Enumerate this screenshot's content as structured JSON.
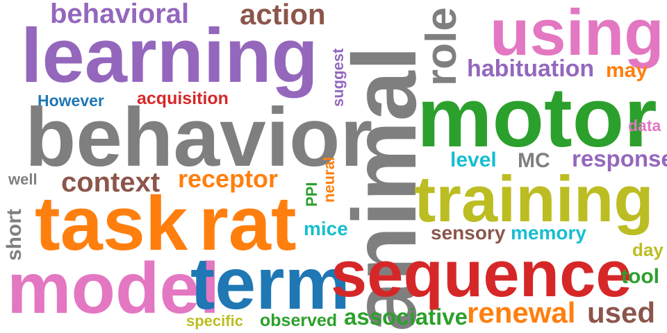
{
  "words": [
    {
      "text": "behavioral",
      "color": "#9467bd"
    },
    {
      "text": "action",
      "color": "#8c564b"
    },
    {
      "text": "learning",
      "color": "#9467bd"
    },
    {
      "text": "animal",
      "color": "#7f7f7f"
    },
    {
      "text": "role",
      "color": "#7f7f7f"
    },
    {
      "text": "using",
      "color": "#e377c2"
    },
    {
      "text": "habituation",
      "color": "#9467bd"
    },
    {
      "text": "may",
      "color": "#ff7f0e"
    },
    {
      "text": "suggest",
      "color": "#9467bd"
    },
    {
      "text": "However",
      "color": "#1f77b4"
    },
    {
      "text": "acquisition",
      "color": "#d62728"
    },
    {
      "text": "motor",
      "color": "#2ca02c"
    },
    {
      "text": "behavior",
      "color": "#7f7f7f"
    },
    {
      "text": "data",
      "color": "#e377c2"
    },
    {
      "text": "level",
      "color": "#17becf"
    },
    {
      "text": "MC",
      "color": "#7f7f7f"
    },
    {
      "text": "response",
      "color": "#9467bd"
    },
    {
      "text": "well",
      "color": "#7f7f7f"
    },
    {
      "text": "context",
      "color": "#8c564b"
    },
    {
      "text": "receptor",
      "color": "#ff7f0e"
    },
    {
      "text": "neural",
      "color": "#ff7f0e"
    },
    {
      "text": "PPI",
      "color": "#2ca02c"
    },
    {
      "text": "training",
      "color": "#bcbd22"
    },
    {
      "text": "task",
      "color": "#ff7f0e"
    },
    {
      "text": "rat",
      "color": "#ff7f0e"
    },
    {
      "text": "short",
      "color": "#7f7f7f"
    },
    {
      "text": "mice",
      "color": "#17becf"
    },
    {
      "text": "sensory",
      "color": "#8c564b"
    },
    {
      "text": "memory",
      "color": "#17becf"
    },
    {
      "text": "day",
      "color": "#bcbd22"
    },
    {
      "text": "model",
      "color": "#e377c2"
    },
    {
      "text": "term",
      "color": "#1f77b4"
    },
    {
      "text": "sequence",
      "color": "#d62728"
    },
    {
      "text": "tool",
      "color": "#2ca02c"
    },
    {
      "text": "renewal",
      "color": "#ff7f0e"
    },
    {
      "text": "used",
      "color": "#8c564b"
    },
    {
      "text": "associative",
      "color": "#2ca02c"
    },
    {
      "text": "observed",
      "color": "#2ca02c"
    },
    {
      "text": "specific",
      "color": "#bcbd22"
    }
  ]
}
